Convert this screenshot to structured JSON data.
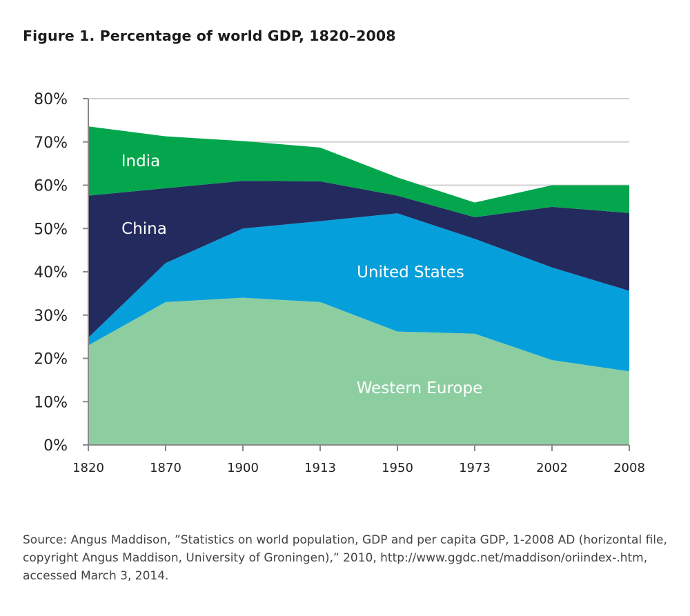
{
  "title": "Figure 1. Percentage of world GDP, 1820–2008",
  "source": "Source: Angus Maddison, ”Statistics on world population, GDP and per capita GDP, 1-2008 AD (horizontal file, copyright Angus Maddison, University of Groningen),” 2010, http://www.ggdc.net/maddison/oriindex-.htm, accessed March 3, 2014.",
  "colors": {
    "western_europe": "#8dcea1",
    "united_states": "#059fdb",
    "china": "#222a5e",
    "india": "#04a64d",
    "grid": "#d0d0d0",
    "axis": "#888888"
  },
  "chart_data": {
    "type": "area",
    "stacked": true,
    "title": "Figure 1. Percentage of world GDP, 1820–2008",
    "xlabel": "",
    "ylabel": "",
    "ylim": [
      0,
      80
    ],
    "yticks": [
      "0%",
      "10%",
      "20%",
      "30%",
      "40%",
      "50%",
      "60%",
      "70%",
      "80%"
    ],
    "categories": [
      "1820",
      "1870",
      "1900",
      "1913",
      "1950",
      "1973",
      "2002",
      "2008"
    ],
    "grid": true,
    "series": [
      {
        "name": "Western Europe",
        "values": [
          23.0,
          33.0,
          34.0,
          33.0,
          26.2,
          25.7,
          19.6,
          17.0
        ]
      },
      {
        "name": "United States",
        "values": [
          1.8,
          9.0,
          16.0,
          18.7,
          27.3,
          21.9,
          21.4,
          18.6
        ]
      },
      {
        "name": "China",
        "values": [
          32.8,
          17.3,
          11.0,
          9.2,
          4.1,
          5.0,
          14.0,
          18.0
        ]
      },
      {
        "name": "India",
        "values": [
          16.0,
          12.0,
          9.2,
          7.8,
          4.2,
          3.4,
          5.0,
          6.4
        ]
      }
    ]
  }
}
